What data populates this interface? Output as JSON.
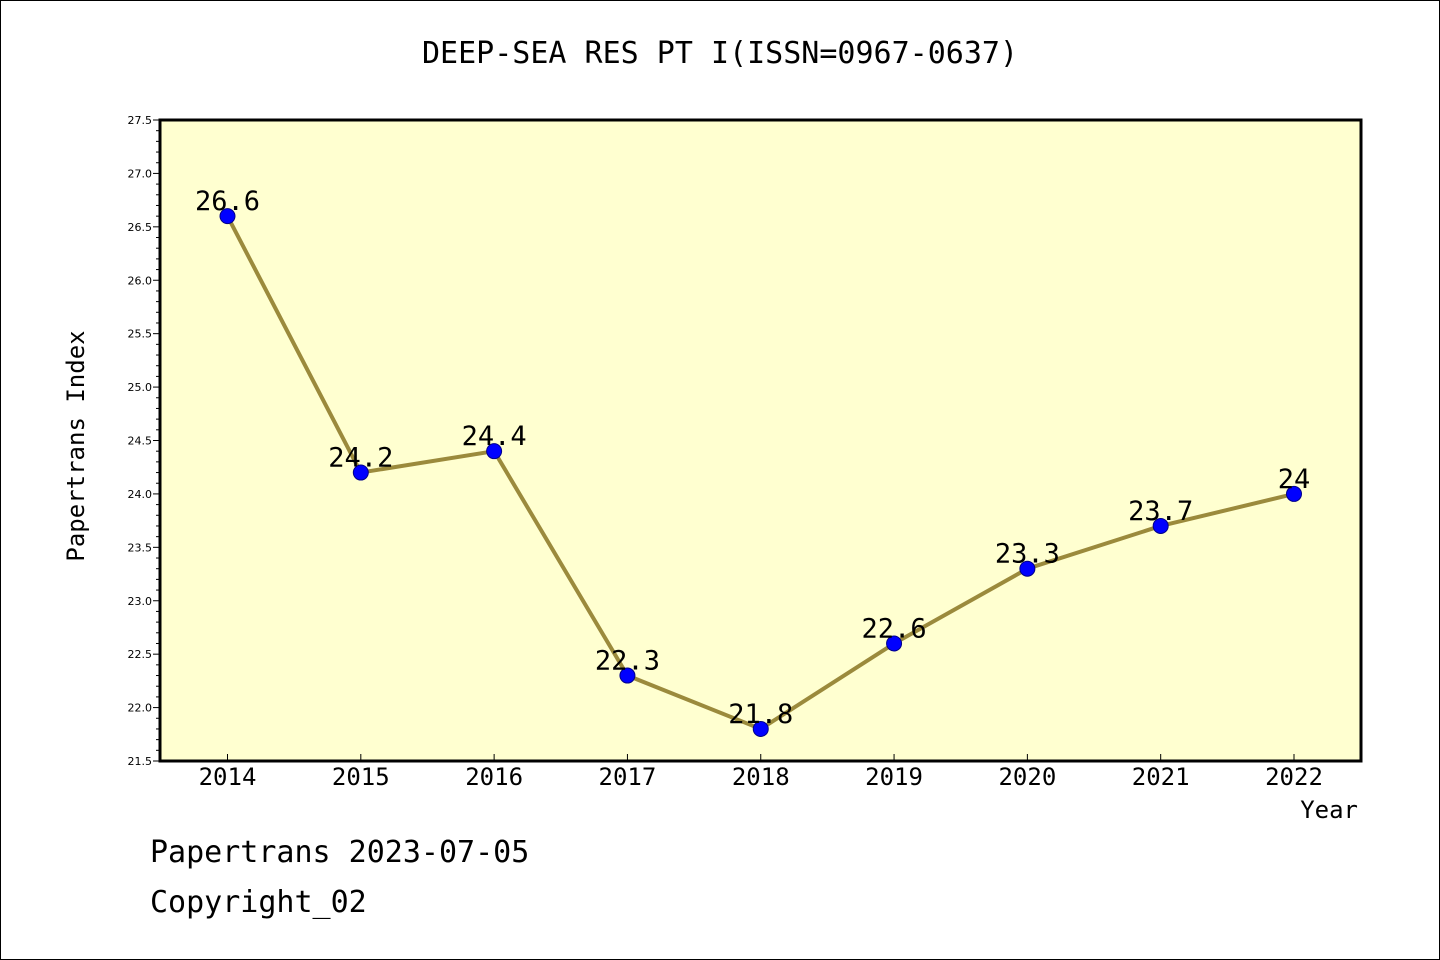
{
  "footer": {
    "source": "Papertrans 2023-07-05",
    "copyright": "Copyright_02"
  },
  "colors": {
    "plot_background": "#ffffd0",
    "line": "#9b8a3c",
    "marker": "#0000ff"
  },
  "chart_data": {
    "type": "line",
    "title": "DEEP-SEA RES PT I(ISSN=0967-0637)",
    "xlabel": "Year",
    "ylabel": "Papertrans Index",
    "categories": [
      "2014",
      "2015",
      "2016",
      "2017",
      "2018",
      "2019",
      "2020",
      "2021",
      "2022"
    ],
    "series": [
      {
        "values": [
          26.6,
          24.2,
          24.4,
          22.3,
          21.8,
          22.6,
          23.3,
          23.7,
          24
        ],
        "labels": [
          "26.6",
          "24.2",
          "24.4",
          "22.3",
          "21.8",
          "22.6",
          "23.3",
          "23.7",
          "24"
        ]
      }
    ],
    "ylim": [
      21.5,
      27.5
    ],
    "yticks": [
      "21.5",
      "22.0",
      "22.5",
      "23.0",
      "23.5",
      "24.0",
      "24.5",
      "25.0",
      "25.5",
      "26.0",
      "26.5",
      "27.0",
      "27.5"
    ],
    "grid": false,
    "legend": "none"
  }
}
